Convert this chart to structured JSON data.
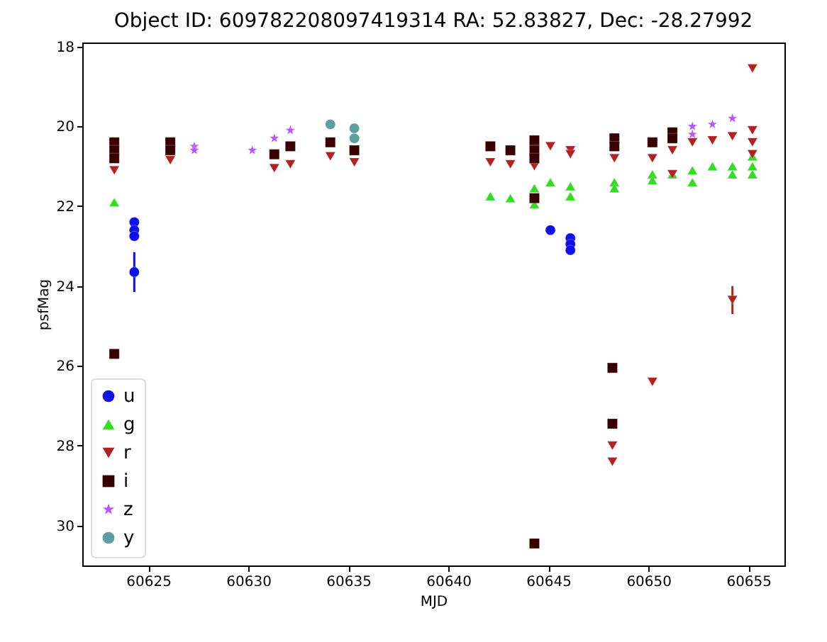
{
  "chart_data": {
    "type": "scatter",
    "title": "Object ID: 609782208097419314 RA: 52.83827, Dec: -28.27992",
    "xlabel": "MJD",
    "ylabel": "psfMag",
    "xlim": [
      60621.7,
      60656.8
    ],
    "ylim": [
      31.0,
      17.9
    ],
    "xticks": [
      60625,
      60630,
      60635,
      60640,
      60645,
      60650,
      60655
    ],
    "yticks": [
      18,
      20,
      22,
      24,
      26,
      28,
      30
    ],
    "grid": false,
    "legend": "bottom left",
    "series": [
      {
        "name": "u",
        "color": "#1010e8",
        "marker": "circle",
        "x": [
          60624.3,
          60624.3,
          60624.3,
          60624.3,
          60645.1,
          60646.1,
          60646.1,
          60646.1
        ],
        "values": [
          22.4,
          22.6,
          22.75,
          23.65,
          22.6,
          22.8,
          22.95,
          23.1
        ],
        "errors": [
          null,
          null,
          null,
          0.5,
          null,
          null,
          null,
          null
        ]
      },
      {
        "name": "g",
        "color": "#33dd22",
        "marker": "triangle",
        "x": [
          60623.3,
          60642.1,
          60643.1,
          60644.3,
          60644.3,
          60645.1,
          60646.1,
          60646.1,
          60648.3,
          60648.3,
          60650.2,
          60650.2,
          60651.2,
          60652.2,
          60652.2,
          60653.2,
          60654.2,
          60654.2,
          60655.2,
          60655.2,
          60655.2
        ],
        "values": [
          21.9,
          21.75,
          21.8,
          21.55,
          21.95,
          21.4,
          21.5,
          21.75,
          21.4,
          21.55,
          21.2,
          21.35,
          21.2,
          21.1,
          21.4,
          21.0,
          21.0,
          21.2,
          20.75,
          21.0,
          21.2
        ]
      },
      {
        "name": "r",
        "color": "#b22222",
        "marker": "triangle-down",
        "x": [
          60623.3,
          60626.1,
          60631.3,
          60632.1,
          60634.1,
          60635.3,
          60642.1,
          60643.1,
          60644.3,
          60645.1,
          60646.1,
          60646.1,
          60648.3,
          60648.2,
          60648.2,
          60650.2,
          60650.2,
          60651.2,
          60651.2,
          60652.2,
          60653.2,
          60654.2,
          60654.2,
          60655.2,
          60655.2,
          60655.2,
          60655.2
        ],
        "values": [
          21.1,
          20.85,
          21.05,
          20.95,
          20.75,
          20.9,
          20.9,
          20.95,
          21.0,
          20.5,
          20.6,
          20.7,
          20.8,
          28.0,
          28.4,
          20.8,
          26.4,
          20.6,
          21.2,
          20.4,
          20.35,
          20.25,
          24.35,
          18.55,
          20.1,
          20.4,
          20.7
        ],
        "errors": [
          null,
          null,
          null,
          null,
          null,
          null,
          null,
          null,
          null,
          null,
          null,
          null,
          null,
          null,
          null,
          null,
          null,
          null,
          null,
          null,
          null,
          null,
          0.35,
          null,
          null,
          null,
          null
        ]
      },
      {
        "name": "i",
        "color": "#380000",
        "marker": "square",
        "x": [
          60623.3,
          60623.3,
          60623.3,
          60623.3,
          60626.1,
          60626.1,
          60631.3,
          60632.1,
          60634.1,
          60635.3,
          60642.1,
          60643.1,
          60644.3,
          60644.3,
          60644.3,
          60644.3,
          60644.3,
          60648.3,
          60648.3,
          60648.2,
          60648.2,
          60650.2,
          60651.2,
          60651.2
        ],
        "values": [
          20.4,
          20.6,
          20.8,
          25.7,
          20.4,
          20.6,
          20.7,
          20.5,
          20.4,
          20.6,
          20.5,
          20.6,
          20.35,
          20.6,
          20.8,
          21.8,
          30.45,
          20.3,
          20.5,
          26.05,
          27.45,
          20.4,
          20.15,
          20.3
        ]
      },
      {
        "name": "z",
        "color": "#bb55ff",
        "marker": "star",
        "x": [
          60627.3,
          60627.3,
          60630.2,
          60631.3,
          60632.1,
          60652.2,
          60652.2,
          60653.2,
          60654.2
        ],
        "values": [
          20.5,
          20.6,
          20.6,
          20.3,
          20.1,
          20.0,
          20.2,
          19.95,
          19.8
        ]
      },
      {
        "name": "y",
        "color": "#5f9ea0",
        "marker": "circle",
        "x": [
          60634.1,
          60635.3,
          60635.3
        ],
        "values": [
          19.95,
          20.05,
          20.3
        ]
      }
    ]
  }
}
